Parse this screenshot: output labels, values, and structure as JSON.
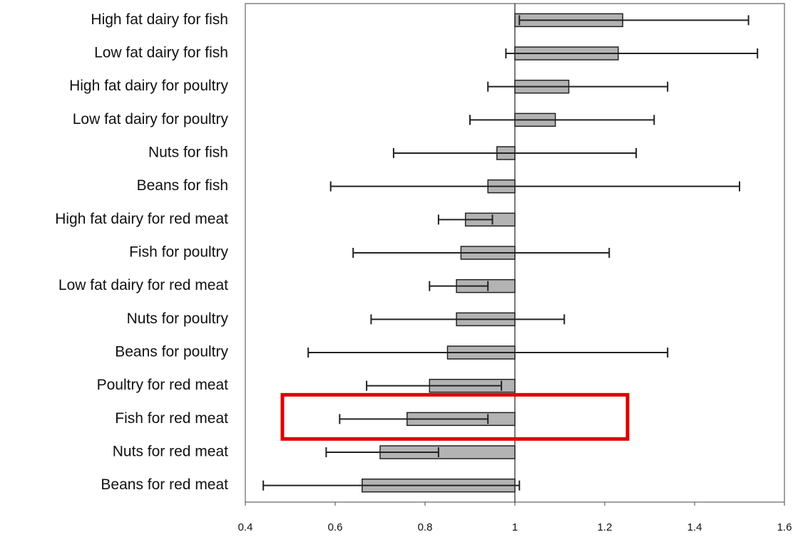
{
  "chart_data": {
    "type": "bar",
    "orientation": "horizontal",
    "categories": [
      "High fat dairy for fish",
      "Low fat dairy for fish",
      "High fat dairy for poultry",
      "Low fat dairy for poultry",
      "Nuts for fish",
      "Beans for fish",
      "High fat dairy for red meat",
      "Fish for poultry",
      "Low fat dairy for red meat",
      "Nuts for poultry",
      "Beans for poultry",
      "Poultry for red meat",
      "Fish for red meat",
      "Nuts for red meat",
      "Beans for red meat"
    ],
    "values": [
      1.24,
      1.23,
      1.12,
      1.09,
      0.96,
      0.94,
      0.89,
      0.88,
      0.87,
      0.87,
      0.85,
      0.81,
      0.76,
      0.7,
      0.66
    ],
    "lower": [
      1.01,
      0.98,
      0.94,
      0.9,
      0.73,
      0.59,
      0.83,
      0.64,
      0.81,
      0.68,
      0.54,
      0.67,
      0.61,
      0.58,
      0.44
    ],
    "upper": [
      1.52,
      1.54,
      1.34,
      1.31,
      1.27,
      1.5,
      0.95,
      1.21,
      0.94,
      1.11,
      1.34,
      0.97,
      0.94,
      0.83,
      1.01
    ],
    "color": "#b3b3b3",
    "baseline": 1,
    "highlight": 12,
    "xlim": [
      0.4,
      1.6
    ],
    "xticks": [
      0.4,
      0.6,
      0.8,
      1,
      1.2,
      1.4,
      1.6
    ]
  }
}
